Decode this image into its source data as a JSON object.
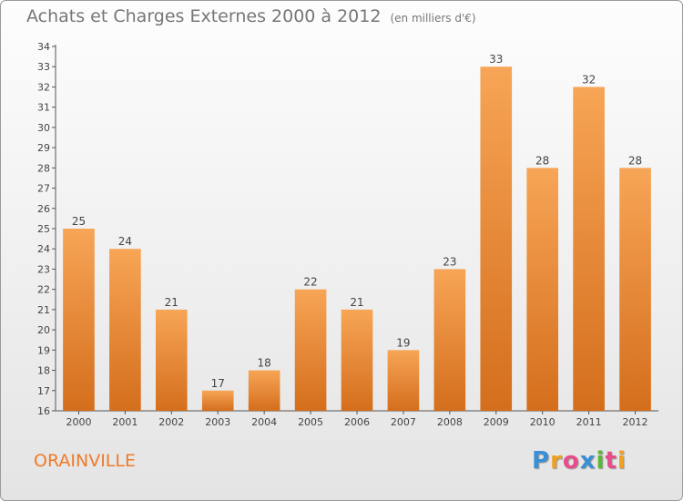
{
  "header": {
    "title": "Achats et Charges Externes 2000 à 2012",
    "subtitle": "(en milliers d'€)"
  },
  "footer": {
    "town": "ORAINVILLE",
    "logo_letters": [
      "P",
      "r",
      "o",
      "x",
      "i",
      "t",
      "i"
    ],
    "logo_colors": [
      "#3a8fd6",
      "#f0a020",
      "#e84c8a",
      "#3a8fd6",
      "#5cb832",
      "#e84c8a",
      "#f0a020"
    ]
  },
  "chart_data": {
    "type": "bar",
    "title": "Achats et Charges Externes 2000 à 2012",
    "subtitle": "(en milliers d'€)",
    "categories": [
      "2000",
      "2001",
      "2002",
      "2003",
      "2004",
      "2005",
      "2006",
      "2007",
      "2008",
      "2009",
      "2010",
      "2011",
      "2012"
    ],
    "values": [
      25,
      24,
      21,
      17,
      18,
      22,
      21,
      19,
      23,
      33,
      28,
      32,
      28
    ],
    "ylim": [
      16,
      34
    ],
    "yticks": [
      16,
      17,
      18,
      19,
      20,
      21,
      22,
      23,
      24,
      25,
      26,
      27,
      28,
      29,
      30,
      31,
      32,
      33,
      34
    ],
    "grid": false,
    "legend": "none",
    "bar_color_top": "#f7a556",
    "bar_color_bottom": "#d46e1c"
  }
}
